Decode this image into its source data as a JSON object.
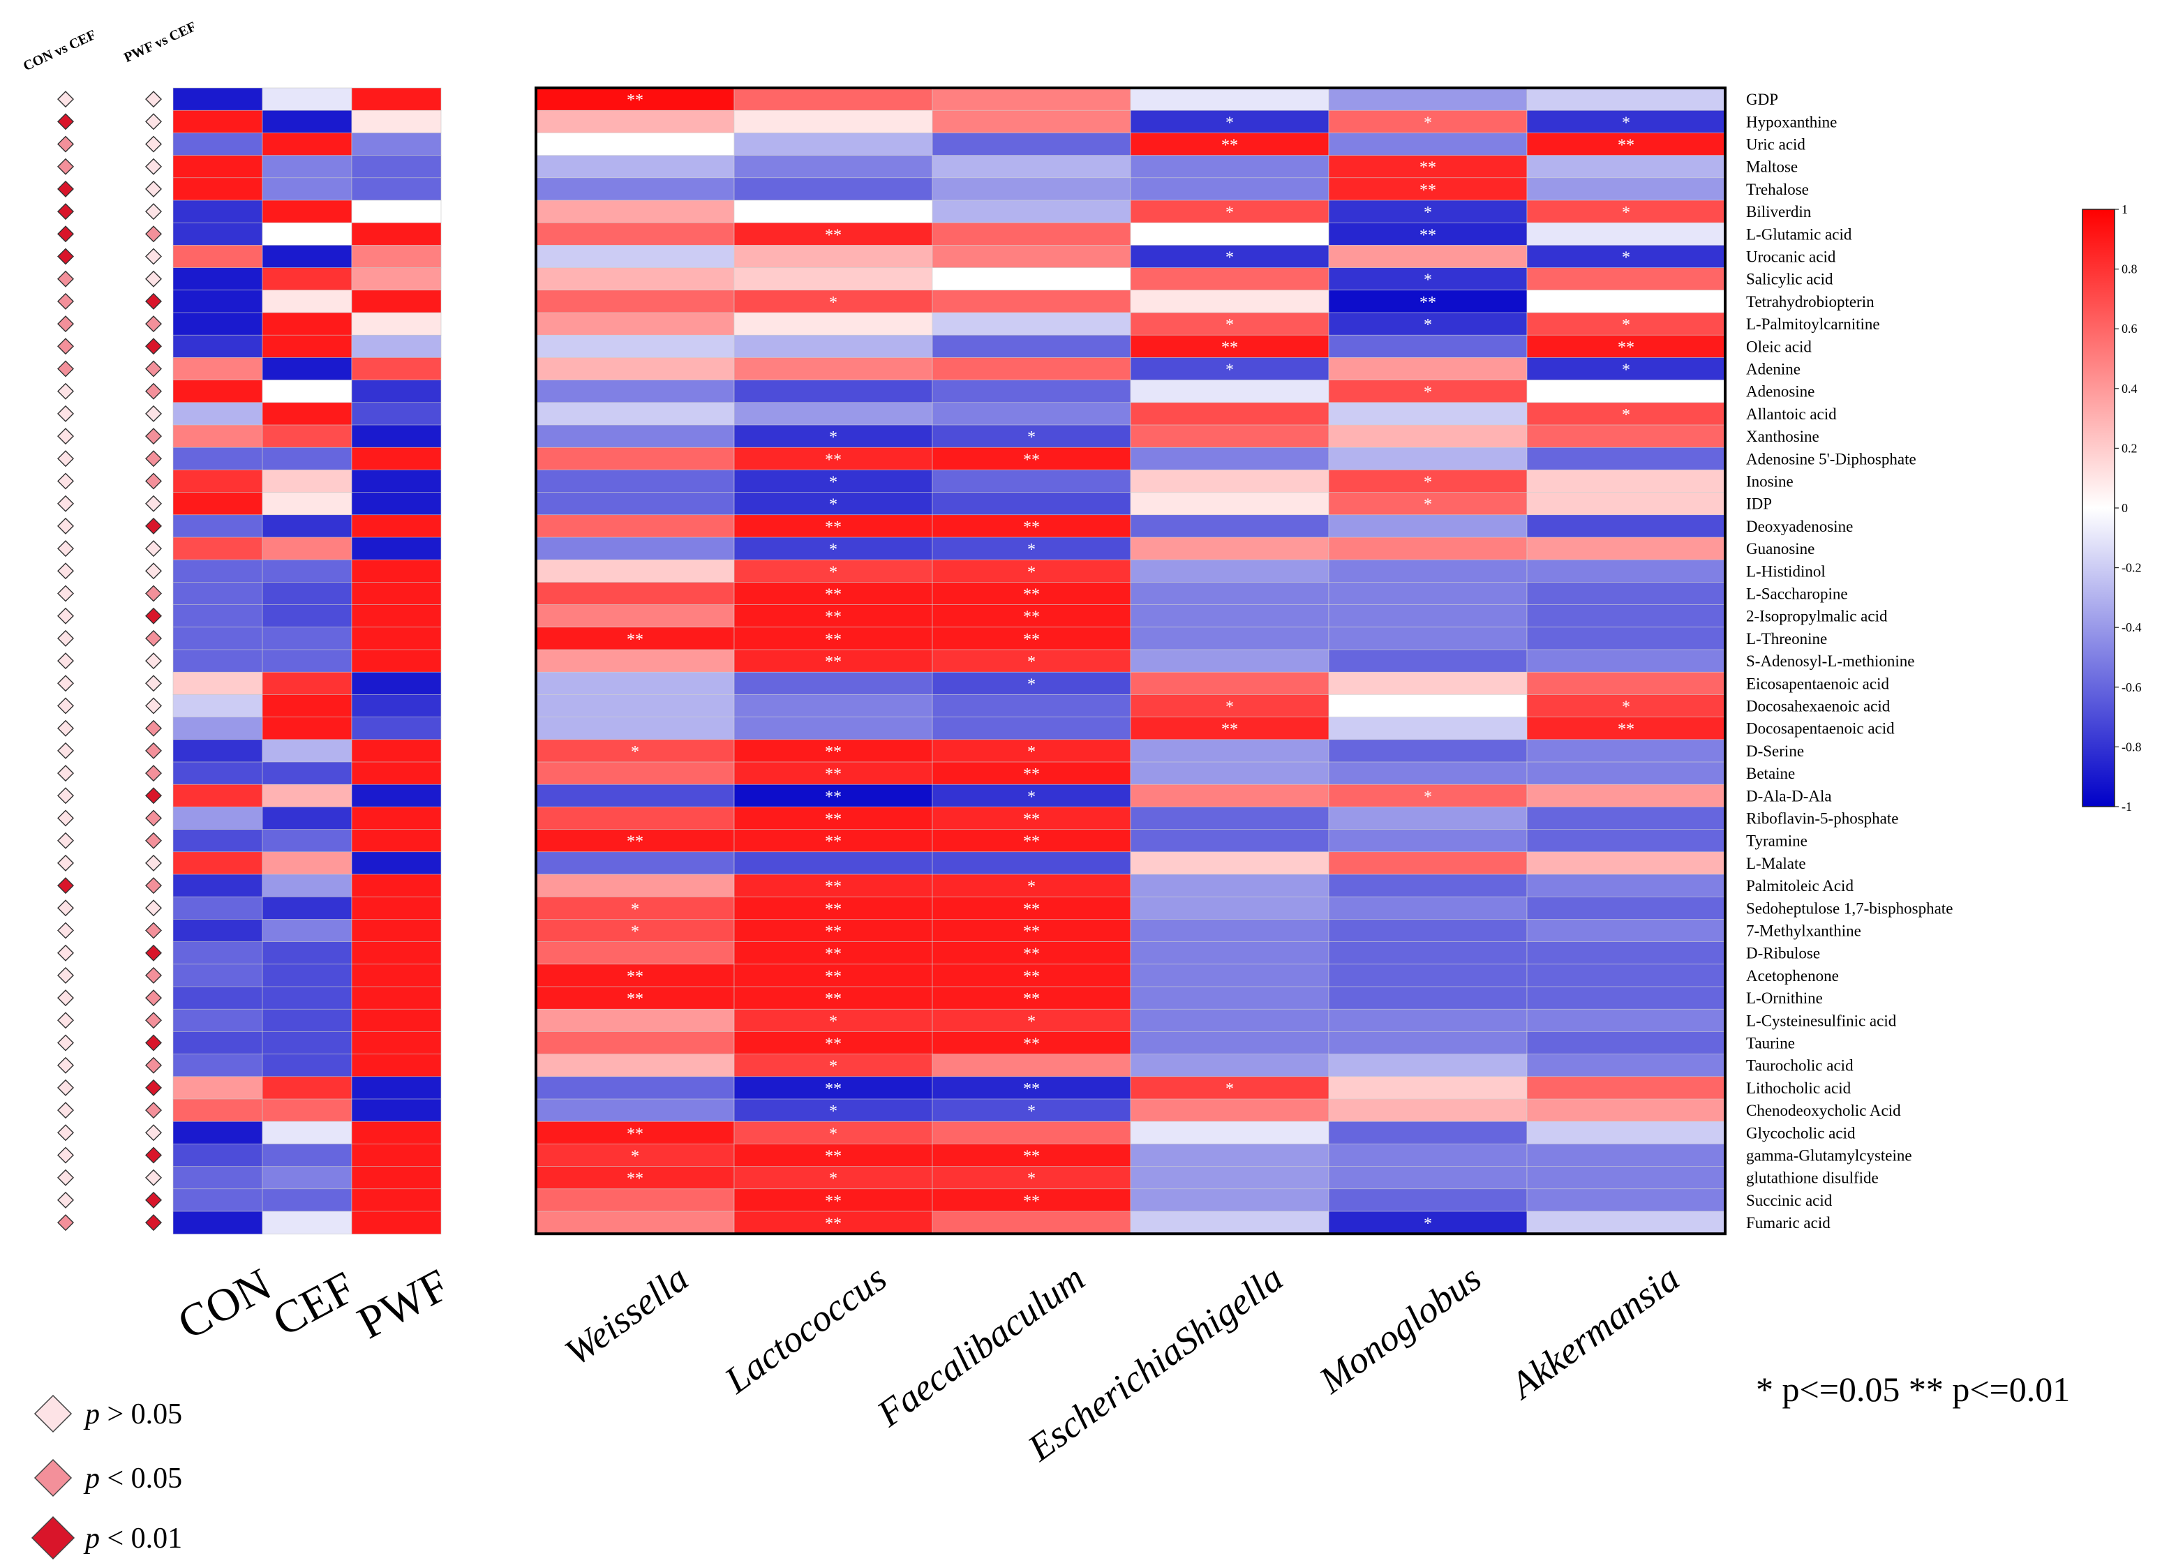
{
  "chart_data": {
    "type": "heatmap",
    "title": "",
    "rows": [
      "GDP",
      "Hypoxanthine",
      "Uric acid",
      "Maltose",
      "Trehalose",
      "Biliverdin",
      "L-Glutamic acid",
      "Urocanic acid",
      "Salicylic acid",
      "Tetrahydrobiopterin",
      "L-Palmitoylcarnitine",
      "Oleic acid",
      "Adenine",
      "Adenosine",
      "Allantoic acid",
      "Xanthosine",
      "Adenosine 5'-Diphosphate",
      "Inosine",
      "IDP",
      "Deoxyadenosine",
      "Guanosine",
      "L-Histidinol",
      "L-Saccharopine",
      "2-Isopropylmalic acid",
      "L-Threonine",
      "S-Adenosyl-L-methionine",
      "Eicosapentaenoic acid",
      "Docosahexaenoic acid",
      "Docosapentaenoic acid",
      "D-Serine",
      "Betaine",
      "D-Ala-D-Ala",
      "Riboflavin-5-phosphate",
      "Tyramine",
      "L-Malate",
      "Palmitoleic Acid",
      "Sedoheptulose 1,7-bisphosphate",
      "7-Methylxanthine",
      "D-Ribulose",
      "Acetophenone",
      "L-Ornithine",
      "L-Cysteinesulfinic acid",
      "Taurine",
      "Taurocholic acid",
      "Lithocholic acid",
      "Chenodeoxycholic Acid",
      "Glycocholic acid",
      "gamma-Glutamylcysteine",
      "glutathione disulfide",
      "Succinic acid",
      "Fumaric acid"
    ],
    "group_columns": [
      "CON",
      "CEF",
      "PWF"
    ],
    "group_values": [
      [
        -0.9,
        -0.1,
        0.9
      ],
      [
        0.9,
        -0.9,
        0.1
      ],
      [
        -0.6,
        0.9,
        -0.5
      ],
      [
        0.9,
        -0.5,
        -0.6
      ],
      [
        0.9,
        -0.5,
        -0.6
      ],
      [
        -0.8,
        0.9,
        0.0
      ],
      [
        -0.8,
        0.0,
        0.9
      ],
      [
        0.6,
        -0.9,
        0.5
      ],
      [
        -0.9,
        0.8,
        0.4
      ],
      [
        -0.9,
        0.1,
        0.9
      ],
      [
        -0.9,
        0.9,
        0.1
      ],
      [
        -0.8,
        0.9,
        -0.3
      ],
      [
        0.5,
        -0.9,
        0.7
      ],
      [
        0.9,
        0.0,
        -0.8
      ],
      [
        -0.3,
        0.9,
        -0.7
      ],
      [
        0.5,
        0.7,
        -0.9
      ],
      [
        -0.6,
        -0.6,
        0.9
      ],
      [
        0.8,
        0.2,
        -0.9
      ],
      [
        0.9,
        0.1,
        -0.9
      ],
      [
        -0.6,
        -0.8,
        0.9
      ],
      [
        0.7,
        0.5,
        -0.9
      ],
      [
        -0.6,
        -0.6,
        0.9
      ],
      [
        -0.6,
        -0.7,
        0.9
      ],
      [
        -0.6,
        -0.7,
        0.9
      ],
      [
        -0.6,
        -0.6,
        0.9
      ],
      [
        -0.6,
        -0.6,
        0.9
      ],
      [
        0.2,
        0.8,
        -0.9
      ],
      [
        -0.2,
        0.9,
        -0.8
      ],
      [
        -0.4,
        0.9,
        -0.7
      ],
      [
        -0.8,
        -0.3,
        0.9
      ],
      [
        -0.7,
        -0.7,
        0.9
      ],
      [
        0.8,
        0.3,
        -0.9
      ],
      [
        -0.4,
        -0.8,
        0.9
      ],
      [
        -0.7,
        -0.6,
        0.9
      ],
      [
        0.8,
        0.4,
        -0.9
      ],
      [
        -0.8,
        -0.4,
        0.9
      ],
      [
        -0.6,
        -0.8,
        0.9
      ],
      [
        -0.8,
        -0.5,
        0.9
      ],
      [
        -0.6,
        -0.7,
        0.9
      ],
      [
        -0.6,
        -0.7,
        0.9
      ],
      [
        -0.7,
        -0.7,
        0.9
      ],
      [
        -0.6,
        -0.7,
        0.9
      ],
      [
        -0.7,
        -0.7,
        0.9
      ],
      [
        -0.6,
        -0.7,
        0.9
      ],
      [
        0.4,
        0.8,
        -0.9
      ],
      [
        0.6,
        0.6,
        -0.9
      ],
      [
        -0.9,
        -0.1,
        0.9
      ],
      [
        -0.7,
        -0.6,
        0.9
      ],
      [
        -0.6,
        -0.5,
        0.9
      ],
      [
        -0.6,
        -0.6,
        0.9
      ],
      [
        -0.9,
        -0.1,
        0.9
      ]
    ],
    "comparison_labels": [
      "CON vs CEF",
      "PWF vs CEF"
    ],
    "comparison_significance": [
      [
        "ns",
        "ns"
      ],
      [
        "p01",
        "ns"
      ],
      [
        "p05",
        "ns"
      ],
      [
        "p05",
        "ns"
      ],
      [
        "p01",
        "ns"
      ],
      [
        "p01",
        "ns"
      ],
      [
        "p01",
        "p05"
      ],
      [
        "p01",
        "ns"
      ],
      [
        "p05",
        "ns"
      ],
      [
        "p05",
        "p01"
      ],
      [
        "p05",
        "p05"
      ],
      [
        "p05",
        "p01"
      ],
      [
        "p05",
        "p05"
      ],
      [
        "ns",
        "p05"
      ],
      [
        "ns",
        "ns"
      ],
      [
        "ns",
        "p05"
      ],
      [
        "ns",
        "p05"
      ],
      [
        "ns",
        "p05"
      ],
      [
        "ns",
        "ns"
      ],
      [
        "ns",
        "p01"
      ],
      [
        "ns",
        "ns"
      ],
      [
        "ns",
        "ns"
      ],
      [
        "ns",
        "p05"
      ],
      [
        "ns",
        "p01"
      ],
      [
        "ns",
        "p05"
      ],
      [
        "ns",
        "ns"
      ],
      [
        "ns",
        "ns"
      ],
      [
        "ns",
        "ns"
      ],
      [
        "ns",
        "p05"
      ],
      [
        "ns",
        "p05"
      ],
      [
        "ns",
        "p05"
      ],
      [
        "ns",
        "p01"
      ],
      [
        "ns",
        "p05"
      ],
      [
        "ns",
        "p05"
      ],
      [
        "ns",
        "ns"
      ],
      [
        "p01",
        "p05"
      ],
      [
        "ns",
        "ns"
      ],
      [
        "ns",
        "p05"
      ],
      [
        "ns",
        "p01"
      ],
      [
        "ns",
        "p05"
      ],
      [
        "ns",
        "p05"
      ],
      [
        "ns",
        "p05"
      ],
      [
        "ns",
        "p01"
      ],
      [
        "ns",
        "p05"
      ],
      [
        "ns",
        "p01"
      ],
      [
        "ns",
        "p05"
      ],
      [
        "ns",
        "ns"
      ],
      [
        "ns",
        "p01"
      ],
      [
        "ns",
        "ns"
      ],
      [
        "ns",
        "p01"
      ],
      [
        "p05",
        "p01"
      ]
    ],
    "genera": [
      "Weissella",
      "Lactococcus",
      "Faecalibaculum",
      "EscherichiaShigella",
      "Monoglobus",
      "Akkermansia"
    ],
    "correlations": [
      [
        0.95,
        0.6,
        0.5,
        -0.1,
        -0.4,
        -0.2
      ],
      [
        0.3,
        0.1,
        0.5,
        -0.8,
        0.6,
        -0.8
      ],
      [
        0.0,
        -0.3,
        -0.6,
        0.9,
        -0.5,
        0.9
      ],
      [
        -0.3,
        -0.5,
        -0.3,
        -0.5,
        0.85,
        -0.3
      ],
      [
        -0.5,
        -0.6,
        -0.4,
        -0.5,
        0.85,
        -0.4
      ],
      [
        0.35,
        0.0,
        -0.3,
        0.7,
        -0.8,
        0.7
      ],
      [
        0.6,
        0.85,
        0.6,
        0.0,
        -0.85,
        -0.1
      ],
      [
        -0.2,
        0.3,
        0.5,
        -0.8,
        0.4,
        -0.8
      ],
      [
        0.3,
        0.2,
        0.0,
        0.6,
        -0.8,
        0.6
      ],
      [
        0.6,
        0.7,
        0.6,
        0.1,
        -0.95,
        0.0
      ],
      [
        0.4,
        0.1,
        -0.2,
        0.65,
        -0.8,
        0.7
      ],
      [
        -0.2,
        -0.3,
        -0.6,
        0.9,
        -0.6,
        0.9
      ],
      [
        0.3,
        0.5,
        0.6,
        -0.7,
        0.4,
        -0.8
      ],
      [
        -0.5,
        -0.7,
        -0.6,
        -0.1,
        0.7,
        0.0
      ],
      [
        -0.2,
        -0.4,
        -0.5,
        0.7,
        -0.2,
        0.7
      ],
      [
        -0.5,
        -0.8,
        -0.7,
        0.6,
        0.3,
        0.6
      ],
      [
        0.6,
        0.85,
        0.9,
        -0.5,
        -0.3,
        -0.6
      ],
      [
        -0.6,
        -0.8,
        -0.6,
        0.2,
        0.7,
        0.2
      ],
      [
        -0.6,
        -0.8,
        -0.7,
        0.1,
        0.6,
        0.2
      ],
      [
        0.6,
        0.9,
        0.9,
        -0.6,
        -0.4,
        -0.7
      ],
      [
        -0.5,
        -0.75,
        -0.7,
        0.4,
        0.5,
        0.4
      ],
      [
        0.2,
        0.75,
        0.8,
        -0.4,
        -0.5,
        -0.5
      ],
      [
        0.7,
        0.9,
        0.9,
        -0.5,
        -0.5,
        -0.6
      ],
      [
        0.5,
        0.9,
        0.9,
        -0.5,
        -0.5,
        -0.6
      ],
      [
        0.9,
        0.9,
        0.9,
        -0.5,
        -0.5,
        -0.6
      ],
      [
        0.4,
        0.85,
        0.8,
        -0.4,
        -0.6,
        -0.5
      ],
      [
        -0.3,
        -0.6,
        -0.7,
        0.6,
        0.2,
        0.6
      ],
      [
        -0.3,
        -0.5,
        -0.6,
        0.75,
        0.0,
        0.75
      ],
      [
        -0.3,
        -0.5,
        -0.6,
        0.85,
        -0.2,
        0.85
      ],
      [
        0.7,
        0.9,
        0.85,
        -0.4,
        -0.6,
        -0.5
      ],
      [
        0.6,
        0.85,
        0.9,
        -0.4,
        -0.5,
        -0.5
      ],
      [
        -0.7,
        -0.95,
        -0.8,
        0.5,
        0.6,
        0.4
      ],
      [
        0.7,
        0.9,
        0.85,
        -0.6,
        -0.4,
        -0.6
      ],
      [
        0.9,
        0.9,
        0.9,
        -0.6,
        -0.5,
        -0.6
      ],
      [
        -0.6,
        -0.7,
        -0.7,
        0.2,
        0.6,
        0.3
      ],
      [
        0.4,
        0.85,
        0.85,
        -0.4,
        -0.6,
        -0.5
      ],
      [
        0.7,
        0.9,
        0.9,
        -0.4,
        -0.5,
        -0.6
      ],
      [
        0.7,
        0.9,
        0.9,
        -0.5,
        -0.6,
        -0.5
      ],
      [
        0.6,
        0.9,
        0.9,
        -0.5,
        -0.6,
        -0.6
      ],
      [
        0.9,
        0.9,
        0.9,
        -0.5,
        -0.6,
        -0.6
      ],
      [
        0.9,
        0.9,
        0.9,
        -0.5,
        -0.6,
        -0.6
      ],
      [
        0.4,
        0.8,
        0.8,
        -0.5,
        -0.5,
        -0.5
      ],
      [
        0.6,
        0.9,
        0.9,
        -0.5,
        -0.5,
        -0.6
      ],
      [
        0.3,
        0.75,
        0.5,
        -0.4,
        -0.3,
        -0.5
      ],
      [
        -0.6,
        -0.9,
        -0.85,
        0.75,
        0.2,
        0.6
      ],
      [
        -0.5,
        -0.75,
        -0.7,
        0.5,
        0.3,
        0.4
      ],
      [
        0.9,
        0.7,
        0.6,
        -0.1,
        -0.6,
        -0.2
      ],
      [
        0.8,
        0.9,
        0.9,
        -0.4,
        -0.5,
        -0.5
      ],
      [
        0.85,
        0.8,
        0.8,
        -0.4,
        -0.5,
        -0.5
      ],
      [
        0.6,
        0.9,
        0.9,
        -0.4,
        -0.6,
        -0.5
      ],
      [
        0.5,
        0.85,
        0.6,
        -0.2,
        -0.85,
        -0.2
      ]
    ],
    "significance": [
      [
        "**",
        "",
        "",
        "",
        "",
        ""
      ],
      [
        "",
        "",
        "",
        "*",
        "*",
        "*"
      ],
      [
        "",
        "",
        "",
        "**",
        "",
        "**"
      ],
      [
        "",
        "",
        "",
        "",
        "**",
        ""
      ],
      [
        "",
        "",
        "",
        "",
        "**",
        ""
      ],
      [
        "",
        "",
        "",
        "*",
        "*",
        "*"
      ],
      [
        "",
        "**",
        "",
        "",
        "**",
        ""
      ],
      [
        "",
        "",
        "",
        "*",
        "",
        "*"
      ],
      [
        "",
        "",
        "",
        "",
        "*",
        ""
      ],
      [
        "",
        "*",
        "",
        "",
        "**",
        ""
      ],
      [
        "",
        "",
        "",
        "*",
        "*",
        "*"
      ],
      [
        "",
        "",
        "",
        "**",
        "",
        "**"
      ],
      [
        "",
        "",
        "",
        "*",
        "",
        "*"
      ],
      [
        "",
        "",
        "",
        "",
        "*",
        ""
      ],
      [
        "",
        "",
        "",
        "",
        "",
        "*"
      ],
      [
        "",
        "*",
        "*",
        "",
        "",
        ""
      ],
      [
        "",
        "**",
        "**",
        "",
        "",
        ""
      ],
      [
        "",
        "*",
        "",
        "",
        "*",
        ""
      ],
      [
        "",
        "*",
        "",
        "",
        "*",
        ""
      ],
      [
        "",
        "**",
        "**",
        "",
        "",
        ""
      ],
      [
        "",
        "*",
        "*",
        "",
        "",
        ""
      ],
      [
        "",
        "*",
        "*",
        "",
        "",
        ""
      ],
      [
        "",
        "**",
        "**",
        "",
        "",
        ""
      ],
      [
        "",
        "**",
        "**",
        "",
        "",
        ""
      ],
      [
        "**",
        "**",
        "**",
        "",
        "",
        ""
      ],
      [
        "",
        "**",
        "*",
        "",
        "",
        ""
      ],
      [
        "",
        "",
        "*",
        "",
        "",
        ""
      ],
      [
        "",
        "",
        "",
        "*",
        "",
        "*"
      ],
      [
        "",
        "",
        "",
        "**",
        "",
        "**"
      ],
      [
        "*",
        "**",
        "*",
        "",
        "",
        ""
      ],
      [
        "",
        "**",
        "**",
        "",
        "",
        ""
      ],
      [
        "",
        "**",
        "*",
        "",
        "*",
        ""
      ],
      [
        "",
        "**",
        "**",
        "",
        "",
        ""
      ],
      [
        "**",
        "**",
        "**",
        "",
        "",
        ""
      ],
      [
        "",
        "",
        "",
        "",
        "",
        ""
      ],
      [
        "",
        "**",
        "*",
        "",
        "",
        ""
      ],
      [
        "*",
        "**",
        "**",
        "",
        "",
        ""
      ],
      [
        "*",
        "**",
        "**",
        "",
        "",
        ""
      ],
      [
        "",
        "**",
        "**",
        "",
        "",
        ""
      ],
      [
        "**",
        "**",
        "**",
        "",
        "",
        ""
      ],
      [
        "**",
        "**",
        "**",
        "",
        "",
        ""
      ],
      [
        "",
        "*",
        "*",
        "",
        "",
        ""
      ],
      [
        "",
        "**",
        "**",
        "",
        "",
        ""
      ],
      [
        "",
        "*",
        "",
        "",
        "",
        ""
      ],
      [
        "",
        "**",
        "**",
        "*",
        "",
        ""
      ],
      [
        "",
        "*",
        "*",
        "",
        "",
        ""
      ],
      [
        "**",
        "*",
        "",
        "",
        "",
        ""
      ],
      [
        "*",
        "**",
        "**",
        "",
        "",
        ""
      ],
      [
        "**",
        "*",
        "*",
        "",
        "",
        ""
      ],
      [
        "",
        "**",
        "**",
        "",
        "",
        ""
      ],
      [
        "",
        "**",
        "",
        "",
        "*",
        ""
      ]
    ],
    "colorbar": {
      "range": [
        -1,
        1
      ],
      "ticks": [
        "1",
        "0.8",
        "0.6",
        "0.4",
        "0.2",
        "0",
        "-0.2",
        "-0.4",
        "-0.6",
        "-0.8",
        "-1"
      ]
    },
    "legend": {
      "diamond": [
        {
          "key": "ns",
          "label": "p > 0.05",
          "color": "#fde3e6"
        },
        {
          "key": "p05",
          "label": "p < 0.05",
          "color": "#f3909a"
        },
        {
          "key": "p01",
          "label": "p < 0.01",
          "color": "#d9152a"
        }
      ],
      "significance_note": "* p<=0.05  ** p<=0.01"
    },
    "colors": {
      "negative": "#0000c8",
      "neutral": "#ffffff",
      "positive": "#ff0000"
    }
  }
}
